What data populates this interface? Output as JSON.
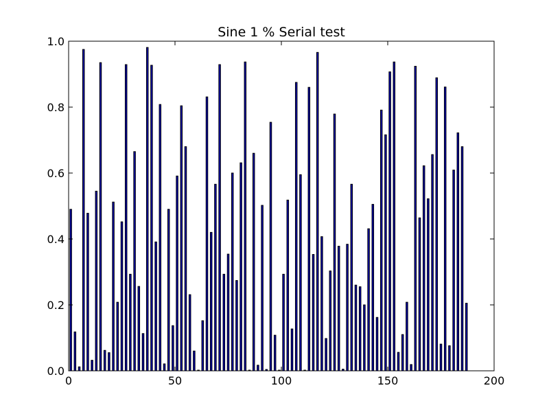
{
  "chart_data": {
    "type": "bar",
    "title": "Sine 1 % Serial test",
    "xlabel": "",
    "ylabel": "",
    "xlim": [
      0,
      200
    ],
    "ylim": [
      0.0,
      1.0
    ],
    "x_ticks": [
      "0",
      "50",
      "100",
      "150",
      "200"
    ],
    "y_ticks": [
      "0.0",
      "0.2",
      "0.4",
      "0.6",
      "0.8",
      "1.0"
    ],
    "bar_color": "#0000b2",
    "edge_color": "#000000",
    "grid": false,
    "series": [
      {
        "x": [
          1,
          3,
          5,
          7,
          9,
          11,
          13,
          15,
          17,
          19,
          21,
          23,
          25,
          27,
          29,
          31,
          33,
          35,
          37,
          39,
          41,
          43,
          45,
          47,
          49,
          51,
          53,
          55,
          57,
          59,
          61,
          63,
          65,
          67,
          69,
          71,
          73,
          75,
          77,
          79,
          81,
          83,
          85,
          87,
          89,
          91,
          93,
          95,
          97,
          99,
          101,
          103,
          105,
          107,
          109,
          111,
          113,
          115,
          117,
          119,
          121,
          123,
          125,
          127,
          129,
          131,
          133,
          135,
          137,
          139,
          141,
          143,
          145,
          147,
          149,
          151,
          153,
          155,
          157,
          159,
          161,
          163,
          165,
          167,
          169,
          171,
          173,
          175,
          177,
          179,
          181,
          183,
          185,
          187
        ],
        "values": [
          0.49,
          0.118,
          0.012,
          0.975,
          0.478,
          0.032,
          0.545,
          0.935,
          0.062,
          0.055,
          0.512,
          0.208,
          0.452,
          0.929,
          0.293,
          0.665,
          0.256,
          0.113,
          0.981,
          0.927,
          0.391,
          0.808,
          0.021,
          0.49,
          0.137,
          0.591,
          0.804,
          0.68,
          0.231,
          0.06,
          0.002,
          0.152,
          0.831,
          0.42,
          0.566,
          0.929,
          0.293,
          0.354,
          0.6,
          0.274,
          0.631,
          0.937,
          0.002,
          0.66,
          0.017,
          0.502,
          0.004,
          0.754,
          0.108,
          0.002,
          0.293,
          0.518,
          0.127,
          0.875,
          0.595,
          0.002,
          0.86,
          0.353,
          0.966,
          0.407,
          0.098,
          0.303,
          0.779,
          0.378,
          0.005,
          0.384,
          0.566,
          0.26,
          0.255,
          0.2,
          0.431,
          0.505,
          0.162,
          0.791,
          0.716,
          0.907,
          0.937,
          0.056,
          0.11,
          0.208,
          0.019,
          0.924,
          0.464,
          0.622,
          0.522,
          0.656,
          0.889,
          0.081,
          0.861,
          0.076,
          0.609,
          0.722,
          0.68,
          0.205
        ]
      }
    ]
  }
}
